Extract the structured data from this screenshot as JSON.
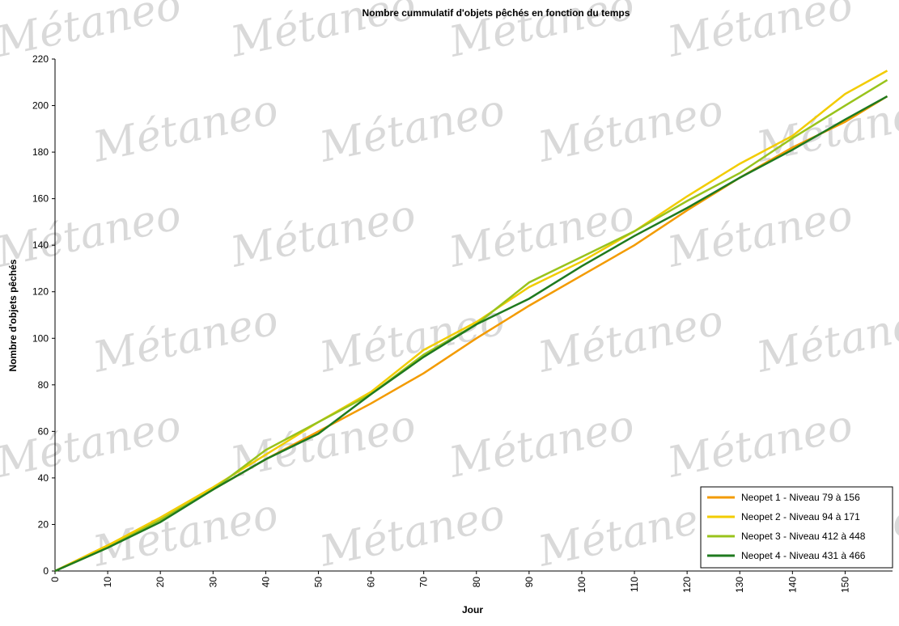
{
  "chart_data": {
    "type": "line",
    "title": "Nombre cummulatif d'objets pêchés en fonction du temps",
    "x_label": "Jour",
    "y_label": "Nombre d'objets pêchés",
    "watermark": "Métaneo",
    "x": [
      0,
      10,
      20,
      30,
      40,
      50,
      60,
      70,
      80,
      90,
      100,
      110,
      120,
      130,
      140,
      150,
      158
    ],
    "series": [
      {
        "name": "Neopet 1 - Niveau 79 à 156",
        "color": "#f39b00",
        "values": [
          0,
          11,
          22,
          35,
          48,
          60,
          72,
          85,
          100,
          114,
          127,
          140,
          155,
          169,
          182,
          193,
          204
        ]
      },
      {
        "name": "Neopet 2 - Niveau 94 à 171",
        "color": "#f2cc00",
        "values": [
          0,
          11,
          23,
          36,
          50,
          64,
          77,
          95,
          107,
          122,
          133,
          146,
          161,
          175,
          187,
          205,
          215
        ]
      },
      {
        "name": "Neopet 3 - Niveau 412 à 448",
        "color": "#99c31c",
        "values": [
          0,
          10,
          22,
          35,
          52,
          64,
          76,
          93,
          106,
          124,
          135,
          146,
          159,
          171,
          186,
          200,
          211
        ]
      },
      {
        "name": "Neopet 4 - Niveau 431 à 466",
        "color": "#1f7a1f",
        "values": [
          0,
          10,
          21,
          35,
          48,
          59,
          76,
          92,
          106,
          117,
          131,
          144,
          156,
          169,
          181,
          194,
          204
        ]
      }
    ],
    "xlim": [
      0,
      159
    ],
    "xticks": [
      0,
      10,
      20,
      30,
      40,
      50,
      60,
      70,
      80,
      90,
      100,
      110,
      120,
      130,
      140,
      150
    ],
    "ylim": [
      0,
      220
    ],
    "yticks": [
      0,
      20,
      40,
      60,
      80,
      100,
      120,
      140,
      160,
      180,
      200,
      220
    ],
    "grid": false,
    "legend_position": "lower right"
  }
}
